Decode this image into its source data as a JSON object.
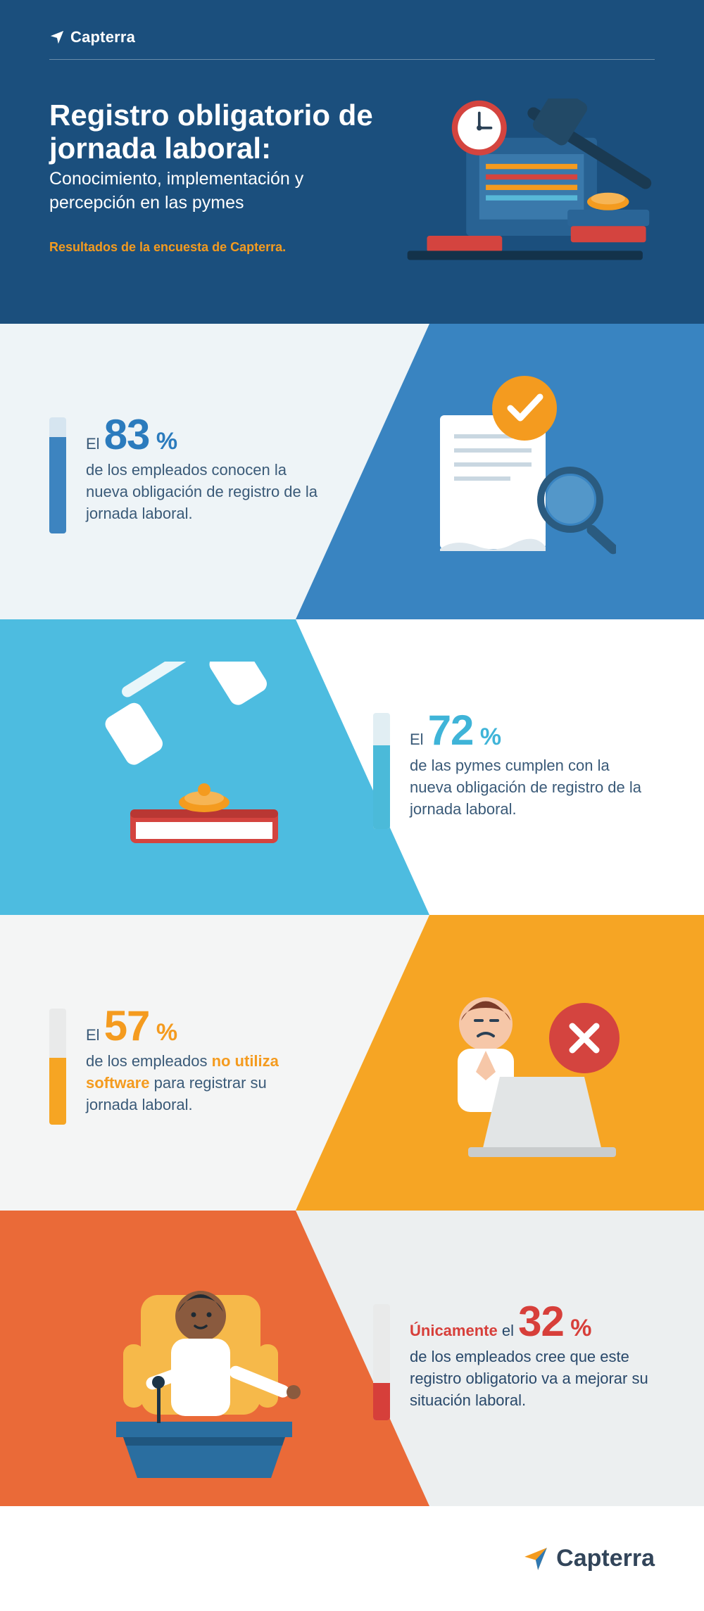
{
  "brand": "Capterra",
  "header": {
    "title": "Registro obligatorio de jornada laboral:",
    "subtitle": "Conocimiento, implementación y percepción en las pymes",
    "tagline": "Resultados de la encuesta de Capterra.",
    "bg_color": "#1b4f7d",
    "accent_color": "#f49b1f"
  },
  "sections": [
    {
      "pct": 83,
      "lead": "El ",
      "big": "83",
      "pct_label": " %",
      "body": "de los empleados conocen la nueva obligación de registro de la jornada laboral.",
      "num_color": "#2b7bbd",
      "body_color": "#3a5a78",
      "bar_bg": "#d6e5f0",
      "bar_fill": "#3d84c0",
      "panel_left": "#eef4f7",
      "panel_right": "#3984c1",
      "text_side": "left"
    },
    {
      "pct": 72,
      "lead": "El ",
      "big": "72",
      "pct_label": " %",
      "body": "de las pymes cumplen con la nueva obligación de registro de la jornada laboral.",
      "num_color": "#3fb4d8",
      "body_color": "#3a5a78",
      "bar_bg": "#e1eef3",
      "bar_fill": "#4bbad9",
      "panel_left": "#4dbce0",
      "panel_right": "#ffffff",
      "text_side": "right"
    },
    {
      "pct": 57,
      "lead": "El ",
      "big": "57",
      "pct_label": " %",
      "body_pre": "de los empleados ",
      "body_emph": "no utiliza software",
      "body_post": " para registrar su jornada laboral.",
      "num_color": "#f49b1f",
      "body_color": "#3a5a78",
      "bar_bg": "#e9eaea",
      "bar_fill": "#f6a523",
      "panel_left": "#f4f5f5",
      "panel_right": "#f6a524",
      "text_side": "left"
    },
    {
      "pct": 32,
      "lead_emph": "Únicamente",
      "lead_post": " el ",
      "big": "32",
      "pct_label": " %",
      "body": "de los empleados cree que este registro obligatorio va a mejorar su situación laboral.",
      "num_color": "#d73f3a",
      "body_color": "#28486a",
      "bar_bg": "#e9eaea",
      "bar_fill": "#d63f3a",
      "panel_left": "#ea6a38",
      "panel_right": "#eceff0",
      "text_side": "right"
    }
  ],
  "footer": {
    "brand": "Capterra"
  }
}
